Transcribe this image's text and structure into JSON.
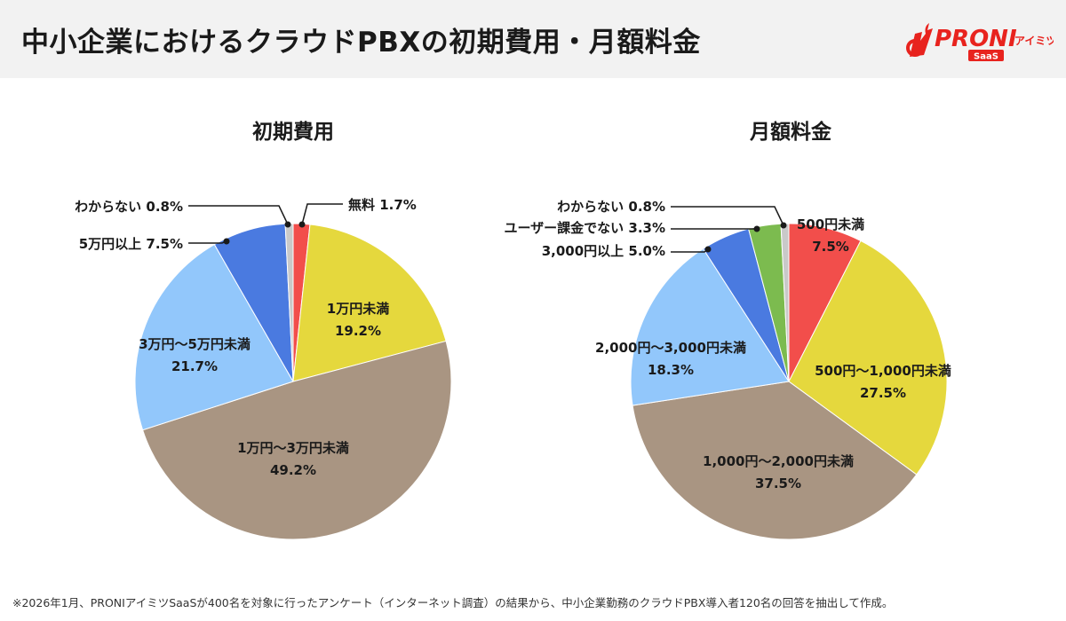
{
  "page": {
    "title": "中小企業におけるクラウドPBXの初期費用・月額料金",
    "footnote": "※2026年1月、PRONIアイミツSaaSが400名を対象に行ったアンケート（インターネット調査）の結果から、中小企業勤務のクラウドPBX導入者120名の回答を抽出して作成。"
  },
  "logo": {
    "brand": "PRONI",
    "sub": "アイミツ",
    "tag": "SaaS",
    "brand_color": "#e8231e"
  },
  "chart_data": [
    {
      "type": "pie",
      "title": "初期費用",
      "slices": [
        {
          "label": "無料",
          "value": 1.7,
          "display": "1.7%",
          "color": "#f24e4b"
        },
        {
          "label": "1万円未満",
          "value": 19.2,
          "display": "19.2%",
          "color": "#e5d83d"
        },
        {
          "label": "1万円〜3万円未満",
          "value": 49.2,
          "display": "49.2%",
          "color": "#a99582"
        },
        {
          "label": "3万円〜5万円未満",
          "value": 21.7,
          "display": "21.7%",
          "color": "#92c7fb"
        },
        {
          "label": "5万円以上",
          "value": 7.5,
          "display": "7.5%",
          "color": "#4a7ae0"
        },
        {
          "label": "わからない",
          "value": 0.8,
          "display": "0.8%",
          "color": "#c9c9c9"
        }
      ]
    },
    {
      "type": "pie",
      "title": "月額料金",
      "slices": [
        {
          "label": "500円未満",
          "value": 7.5,
          "display": "7.5%",
          "color": "#f24e4b"
        },
        {
          "label": "500円〜1,000円未満",
          "value": 27.5,
          "display": "27.5%",
          "color": "#e5d83d"
        },
        {
          "label": "1,000円〜2,000円未満",
          "value": 37.5,
          "display": "37.5%",
          "color": "#a99582"
        },
        {
          "label": "2,000円〜3,000円未満",
          "value": 18.3,
          "display": "18.3%",
          "color": "#92c7fb"
        },
        {
          "label": "3,000円以上",
          "value": 5.0,
          "display": "5.0%",
          "color": "#4a7ae0"
        },
        {
          "label": "ユーザー課金でない",
          "value": 3.3,
          "display": "3.3%",
          "color": "#7cbb4f"
        },
        {
          "label": "わからない",
          "value": 0.8,
          "display": "0.8%",
          "color": "#c9c9c9"
        }
      ]
    }
  ]
}
